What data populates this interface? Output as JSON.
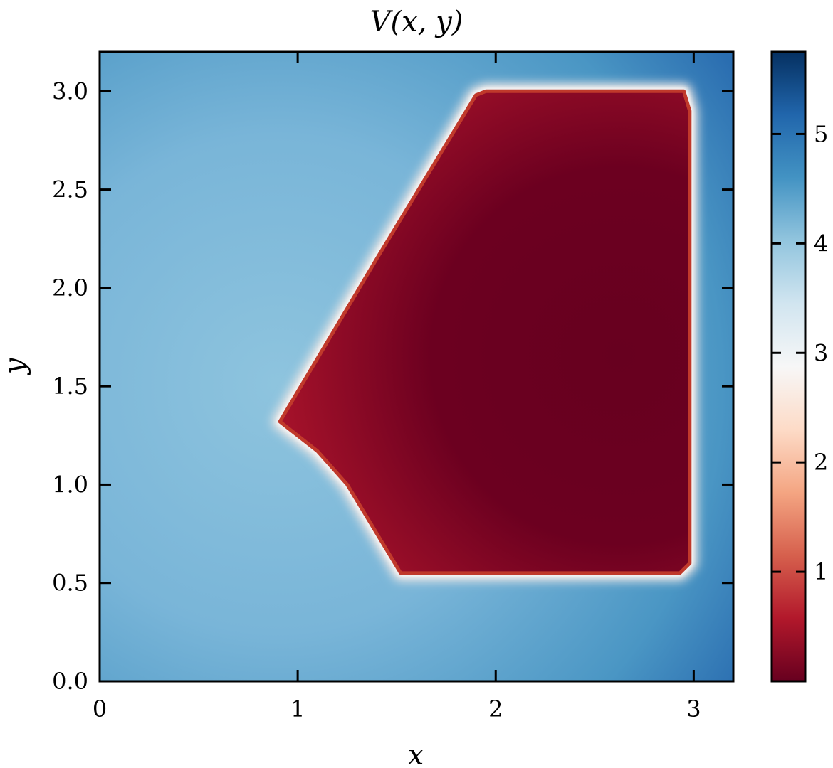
{
  "chart_data": {
    "type": "heatmap",
    "title": "V(x, y)",
    "xlabel": "x",
    "ylabel": "y",
    "xlim": [
      0,
      3.2
    ],
    "ylim": [
      0,
      3.2
    ],
    "x_ticks": [
      0,
      1,
      2,
      3
    ],
    "x_tick_labels": [
      "0",
      "1",
      "2",
      "3"
    ],
    "y_ticks": [
      0.0,
      0.5,
      1.0,
      1.5,
      2.0,
      2.5,
      3.0
    ],
    "y_tick_labels": [
      "0.0",
      "0.5",
      "1.0",
      "1.5",
      "2.0",
      "2.5",
      "3.0"
    ],
    "colormap": "RdBu",
    "colorbar": {
      "range": [
        0,
        5.75
      ],
      "ticks": [
        1,
        2,
        3,
        4,
        5
      ],
      "tick_labels": [
        "1",
        "2",
        "3",
        "4",
        "5"
      ]
    },
    "low_region_polygon": [
      [
        1.95,
        3.0
      ],
      [
        2.95,
        3.0
      ],
      [
        2.98,
        2.9
      ],
      [
        2.98,
        0.6
      ],
      [
        2.93,
        0.55
      ],
      [
        1.52,
        0.55
      ],
      [
        1.4,
        0.75
      ],
      [
        1.25,
        1.0
      ],
      [
        1.1,
        1.17
      ],
      [
        0.91,
        1.32
      ],
      [
        1.4,
        2.15
      ],
      [
        1.9,
        2.98
      ]
    ],
    "low_region_value": 0.05,
    "field_center": [
      0.9,
      1.5
    ],
    "field_center_value": 4.3,
    "field_corner_value": 5.3
  }
}
